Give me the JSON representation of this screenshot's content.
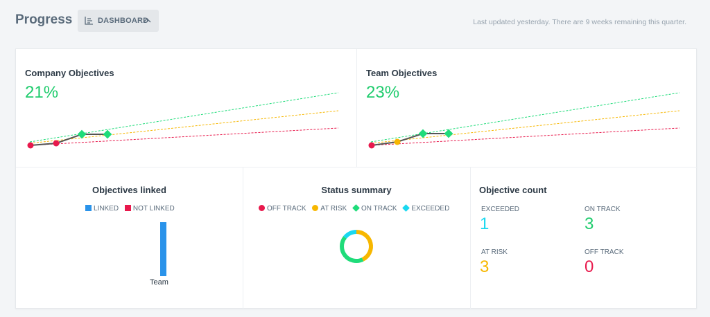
{
  "header": {
    "title": "Progress",
    "dashboard_label": "DASHBOARD",
    "updated_text": "Last updated yesterday. There are 9 weeks remaining this quarter."
  },
  "company": {
    "title": "Company Objectives",
    "percent": "21%"
  },
  "team": {
    "title": "Team Objectives",
    "percent": "23%"
  },
  "linked": {
    "title": "Objectives linked",
    "legend": [
      "LINKED",
      "NOT LINKED"
    ],
    "bar_label": "Team"
  },
  "status": {
    "title": "Status summary",
    "legend": [
      "OFF TRACK",
      "AT RISK",
      "ON TRACK",
      "EXCEEDED"
    ]
  },
  "count": {
    "title": "Objective count",
    "exceeded_label": "EXCEEDED",
    "exceeded_value": "1",
    "ontrack_label": "ON TRACK",
    "ontrack_value": "3",
    "atrisk_label": "AT RISK",
    "atrisk_value": "3",
    "offtrack_label": "OFF TRACK",
    "offtrack_value": "0"
  },
  "colors": {
    "off_track": "#e8194c",
    "at_risk": "#f7b700",
    "on_track": "#1fdc7a",
    "exceeded": "#19d8f0",
    "linked": "#2a93ea",
    "not_linked": "#e8194c"
  },
  "chart_data": [
    {
      "type": "line",
      "title": "Company Objectives",
      "series": [],
      "x": [
        0,
        1,
        2,
        3
      ]
    },
    {
      "type": "line",
      "title": "Team Objectives",
      "series": [],
      "x": [
        0,
        1,
        2,
        3
      ]
    },
    {
      "type": "bar",
      "title": "Objectives linked",
      "categories": [
        "Team"
      ],
      "series": [
        {
          "name": "LINKED",
          "values": [
            1
          ]
        },
        {
          "name": "NOT LINKED",
          "values": [
            0
          ]
        }
      ]
    },
    {
      "type": "pie",
      "title": "Status summary",
      "categories": [
        "OFF TRACK",
        "AT RISK",
        "ON TRACK",
        "EXCEEDED"
      ],
      "values": [
        0,
        3,
        3,
        1
      ]
    }
  ]
}
